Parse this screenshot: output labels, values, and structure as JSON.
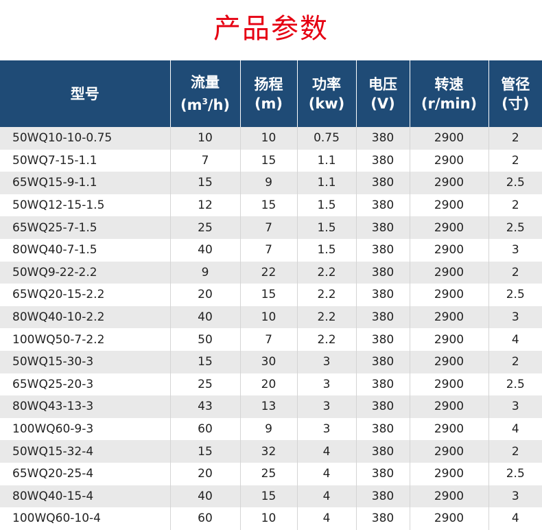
{
  "title": "产品参数",
  "header": {
    "model": "型号",
    "flow": "流量",
    "flow_unit_a": "(m",
    "flow_unit_sup": "3",
    "flow_unit_b": "/h)",
    "head": "扬程",
    "head_unit": "(m)",
    "power": "功率",
    "power_unit": "(kw)",
    "voltage": "电压",
    "voltage_unit": "(V)",
    "speed": "转速",
    "speed_unit": "(r/min)",
    "pipe": "管径",
    "pipe_unit": "(寸)"
  },
  "rows": [
    [
      "50WQ10-10-0.75",
      "10",
      "10",
      "0.75",
      "380",
      "2900",
      "2"
    ],
    [
      "50WQ7-15-1.1",
      "7",
      "15",
      "1.1",
      "380",
      "2900",
      "2"
    ],
    [
      "65WQ15-9-1.1",
      "15",
      "9",
      "1.1",
      "380",
      "2900",
      "2.5"
    ],
    [
      "50WQ12-15-1.5",
      "12",
      "15",
      "1.5",
      "380",
      "2900",
      "2"
    ],
    [
      "65WQ25-7-1.5",
      "25",
      "7",
      "1.5",
      "380",
      "2900",
      "2.5"
    ],
    [
      "80WQ40-7-1.5",
      "40",
      "7",
      "1.5",
      "380",
      "2900",
      "3"
    ],
    [
      "50WQ9-22-2.2",
      "9",
      "22",
      "2.2",
      "380",
      "2900",
      "2"
    ],
    [
      "65WQ20-15-2.2",
      "20",
      "15",
      "2.2",
      "380",
      "2900",
      "2.5"
    ],
    [
      "80WQ40-10-2.2",
      "40",
      "10",
      "2.2",
      "380",
      "2900",
      "3"
    ],
    [
      "100WQ50-7-2.2",
      "50",
      "7",
      "2.2",
      "380",
      "2900",
      "4"
    ],
    [
      "50WQ15-30-3",
      "15",
      "30",
      "3",
      "380",
      "2900",
      "2"
    ],
    [
      "65WQ25-20-3",
      "25",
      "20",
      "3",
      "380",
      "2900",
      "2.5"
    ],
    [
      "80WQ43-13-3",
      "43",
      "13",
      "3",
      "380",
      "2900",
      "3"
    ],
    [
      "100WQ60-9-3",
      "60",
      "9",
      "3",
      "380",
      "2900",
      "4"
    ],
    [
      "50WQ15-32-4",
      "15",
      "32",
      "4",
      "380",
      "2900",
      "2"
    ],
    [
      "65WQ20-25-4",
      "20",
      "25",
      "4",
      "380",
      "2900",
      "2.5"
    ],
    [
      "80WQ40-15-4",
      "40",
      "15",
      "4",
      "380",
      "2900",
      "3"
    ],
    [
      "100WQ60-10-4",
      "60",
      "10",
      "4",
      "380",
      "2900",
      "4"
    ]
  ],
  "colors": {
    "title": "#e60012",
    "header_bg": "#1f4b76",
    "row_stripe": "#e9e9e9"
  }
}
